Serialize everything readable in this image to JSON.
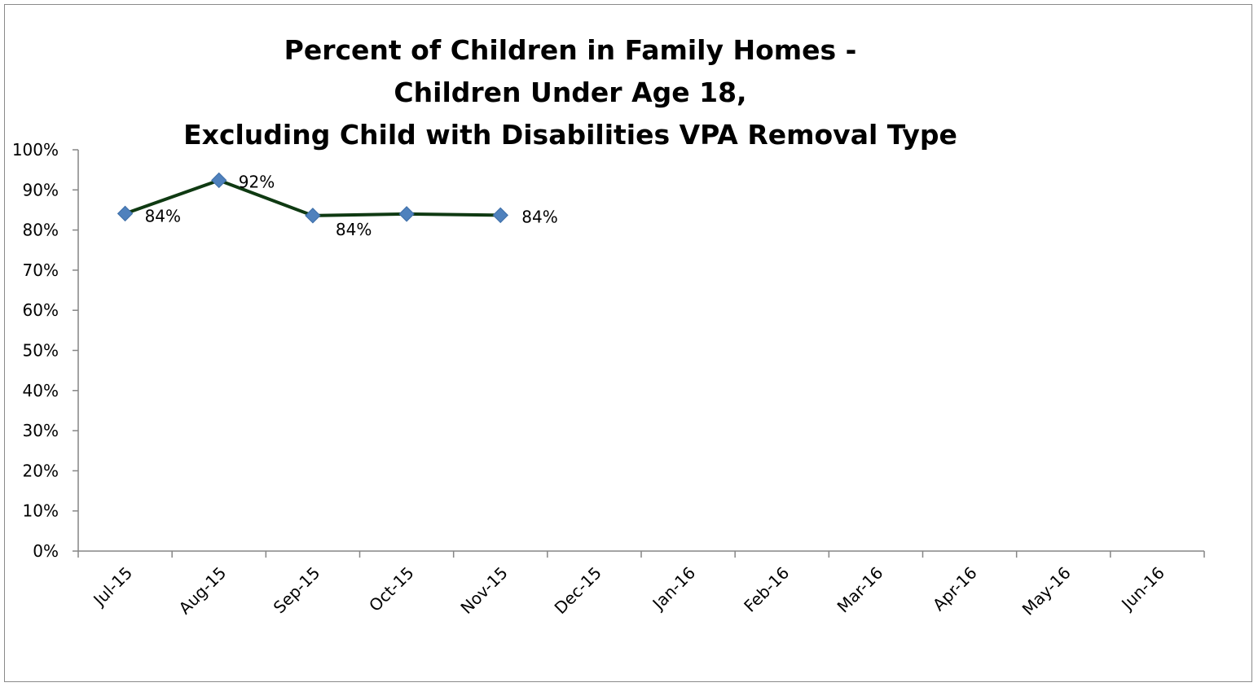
{
  "chart_data": {
    "type": "line",
    "title_lines": [
      "Percent of Children in Family Homes -",
      "Children Under Age 18,",
      "Excluding Child with Disabilities VPA Removal Type"
    ],
    "categories": [
      "Jul-15",
      "Aug-15",
      "Sep-15",
      "Oct-15",
      "Nov-15",
      "Dec-15",
      "Jan-16",
      "Feb-16",
      "Mar-16",
      "Apr-16",
      "May-16",
      "Jun-16"
    ],
    "y_ticks": [
      "0%",
      "10%",
      "20%",
      "30%",
      "40%",
      "50%",
      "60%",
      "70%",
      "80%",
      "90%",
      "100%"
    ],
    "ylim": [
      0,
      100
    ],
    "series": [
      {
        "values": [
          84.1,
          92.4,
          83.6,
          84.0,
          83.7,
          null,
          null,
          null,
          null,
          null,
          null,
          null
        ],
        "data_labels": [
          "84%",
          "92%",
          "84%",
          "",
          "84%",
          "",
          "",
          "",
          "",
          "",
          "",
          ""
        ],
        "line_color": "#0f3a12",
        "marker_color": "#4f81bd"
      }
    ],
    "grid": false,
    "legend": "none"
  }
}
